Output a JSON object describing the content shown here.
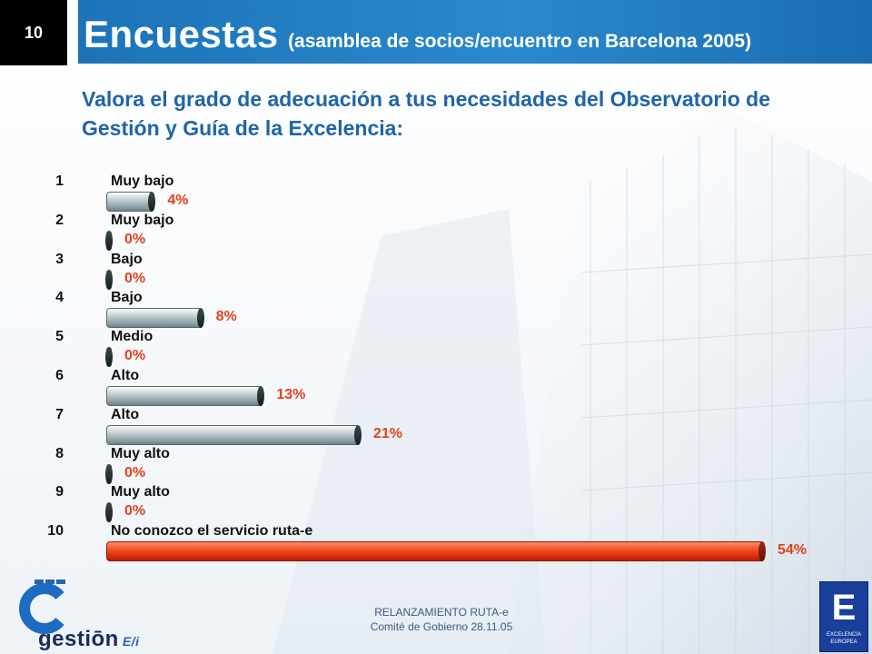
{
  "header": {
    "slide_number": "10",
    "title": "Encuestas",
    "subtitle": "(asamblea de socios/encuentro en Barcelona 2005)"
  },
  "question": "Valora el grado de adecuación a tus necesidades del Observatorio de Gestión y Guía de la Excelencia:",
  "chart_data": {
    "type": "bar",
    "orientation": "horizontal",
    "numbers": [
      "1",
      "2",
      "3",
      "4",
      "5",
      "6",
      "7",
      "8",
      "9",
      "10"
    ],
    "categories": [
      "Muy bajo",
      "Muy bajo",
      "Bajo",
      "Bajo",
      "Medio",
      "Alto",
      "Alto",
      "Muy alto",
      "Muy alto",
      "No conozco el servicio ruta-e"
    ],
    "values": [
      4,
      0,
      0,
      8,
      0,
      13,
      21,
      0,
      0,
      54
    ],
    "labels": [
      "4%",
      "0%",
      "0%",
      "8%",
      "0%",
      "13%",
      "21%",
      "0%",
      "0%",
      "54%"
    ],
    "unit": "%",
    "highlight_index": 9,
    "colors": {
      "bar": "#a9b8bd",
      "highlight": "#e63c14",
      "label": "#e2421c"
    }
  },
  "footer": {
    "line1": "RELANZAMIENTO  RUTA-e",
    "line2": "Comité de Gobierno 28.11.05"
  },
  "logos": {
    "left_text": "gestiōn",
    "left_suffix": "E/i",
    "right_letter": "E",
    "right_caption_1": "EXCELENCIA",
    "right_caption_2": "EUROPEA"
  }
}
